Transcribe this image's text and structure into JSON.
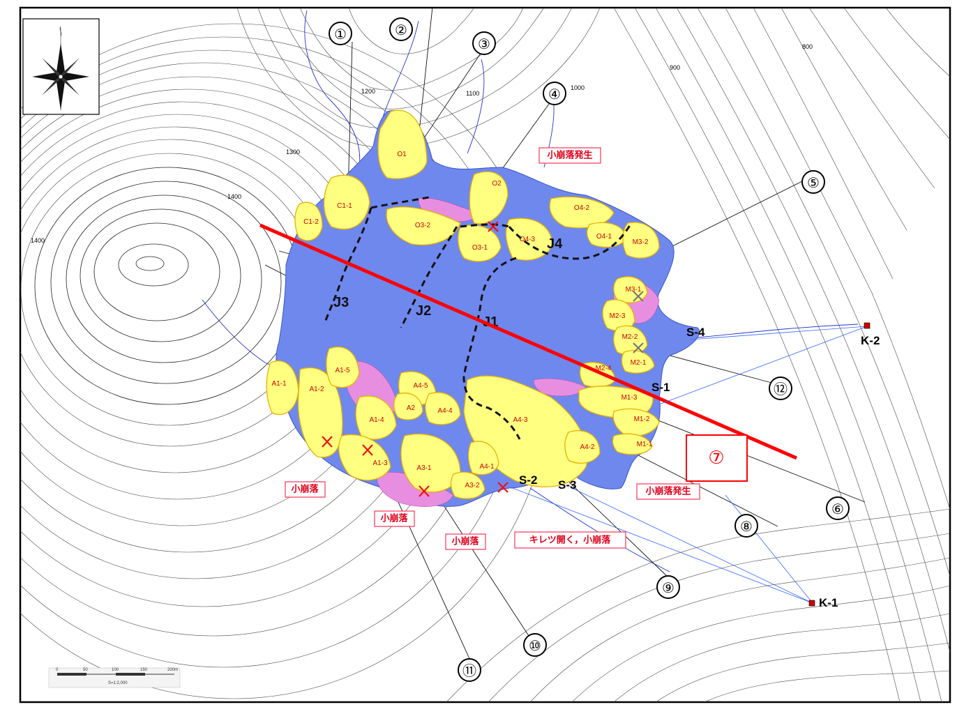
{
  "map": {
    "compass": {
      "icon": "north-arrow-compass-rose-icon"
    },
    "elevation_labels": [
      "1400",
      "1400",
      "1300",
      "1200",
      "1100",
      "1000",
      "900",
      "800"
    ],
    "profile_numbers": [
      "①",
      "②",
      "③",
      "④",
      "⑤",
      "⑥",
      "⑦",
      "⑧",
      "⑨",
      "⑩",
      "⑪",
      "⑫"
    ],
    "highlighted_section": "⑦",
    "joints": [
      "J1",
      "J2",
      "J3",
      "J4"
    ],
    "blocks": [
      "O1",
      "O2",
      "O3-1",
      "O3-2",
      "O4-1",
      "O4-2",
      "O4-3",
      "C1-1",
      "C1-2",
      "M1-1",
      "M1-2",
      "M1-3",
      "M2-1",
      "M2-2",
      "M2-3",
      "M2-4",
      "M3-1",
      "M3-2",
      "A1-1",
      "A1-2",
      "A1-3",
      "A1-4",
      "A1-5",
      "A2",
      "A3-1",
      "A3-2",
      "A4-1",
      "A4-2",
      "A4-3",
      "A4-4",
      "A4-5"
    ],
    "stations": [
      "S-1",
      "S-2",
      "S-3",
      "S-4",
      "K-1",
      "K-2"
    ],
    "callouts": {
      "top": "小崩落発生",
      "right_bottom": "小崩落発生",
      "left": "小崩落",
      "bottom_left": "小崩落",
      "bottom_mid": "小崩落",
      "bottom_crack": "キレツ開く，小崩落"
    },
    "colors": {
      "slide_body": "#6f88ee",
      "block_fill": "#ffff80",
      "section_line": "#ff0000",
      "callout_text": "#e0001a"
    },
    "scale_bar": {
      "ticks": [
        "0",
        "50",
        "100",
        "150",
        "200m"
      ],
      "ratio": "S=1:2,000"
    }
  }
}
